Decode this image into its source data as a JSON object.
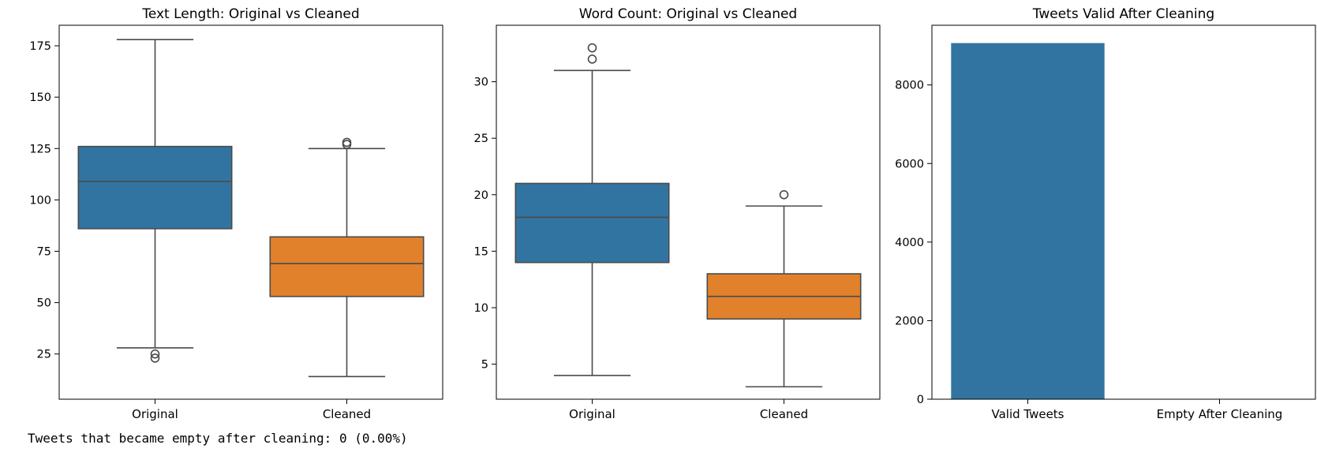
{
  "chart_data": [
    {
      "type": "box",
      "title": "Text Length: Original vs Cleaned",
      "xlabel": "",
      "ylabel": "",
      "ylim": [
        3,
        185
      ],
      "yticks": [
        25,
        50,
        75,
        100,
        125,
        150,
        175
      ],
      "categories": [
        "Original",
        "Cleaned"
      ],
      "series": [
        {
          "category": "Original",
          "color": "#3274a1",
          "whisker_low": 28,
          "q1": 86,
          "median": 109,
          "q3": 126,
          "whisker_high": 178,
          "outliers": [
            23,
            25
          ]
        },
        {
          "category": "Cleaned",
          "color": "#e1812c",
          "whisker_low": 14,
          "q1": 53,
          "median": 69,
          "q3": 82,
          "whisker_high": 125,
          "outliers": [
            127,
            128
          ]
        }
      ]
    },
    {
      "type": "box",
      "title": "Word Count: Original vs Cleaned",
      "xlabel": "",
      "ylabel": "",
      "ylim": [
        1.9,
        35.0
      ],
      "yticks": [
        5,
        10,
        15,
        20,
        25,
        30
      ],
      "categories": [
        "Original",
        "Cleaned"
      ],
      "series": [
        {
          "category": "Original",
          "color": "#3274a1",
          "whisker_low": 4,
          "q1": 14,
          "median": 18,
          "q3": 21,
          "whisker_high": 31,
          "outliers": [
            32,
            33
          ]
        },
        {
          "category": "Cleaned",
          "color": "#e1812c",
          "whisker_low": 3,
          "q1": 9,
          "median": 11,
          "q3": 13,
          "whisker_high": 19,
          "outliers": [
            20
          ]
        }
      ]
    },
    {
      "type": "bar",
      "title": "Tweets Valid After Cleaning",
      "xlabel": "",
      "ylabel": "",
      "ylim": [
        0,
        9520
      ],
      "yticks": [
        0,
        2000,
        4000,
        6000,
        8000
      ],
      "categories": [
        "Valid Tweets",
        "Empty After Cleaning"
      ],
      "values": [
        9066,
        0
      ],
      "color": "#3274a1"
    }
  ],
  "console_output": "Tweets that became empty after cleaning: 0 (0.00%)"
}
